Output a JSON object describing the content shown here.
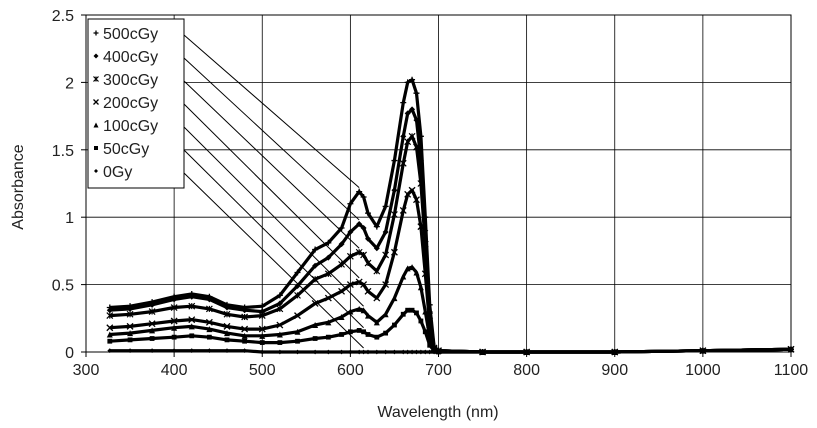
{
  "chart_data": {
    "type": "scatter",
    "title": "",
    "xlabel": "Wavelength (nm)",
    "ylabel": "Absorbance",
    "xlim": [
      300,
      1100
    ],
    "ylim": [
      0,
      2.5
    ],
    "xticks": [
      "300",
      "400",
      "500",
      "600",
      "700",
      "800",
      "900",
      "1000",
      "1100"
    ],
    "yticks": [
      "0",
      "0.5",
      "1",
      "1.5",
      "2",
      "2.5"
    ],
    "grid": true,
    "legend_position": "top-left",
    "series": [
      {
        "name": "500cGy",
        "marker": "plus",
        "x": [
          327,
          350,
          375,
          400,
          420,
          440,
          460,
          480,
          500,
          520,
          540,
          560,
          575,
          590,
          600,
          610,
          615,
          620,
          630,
          640,
          650,
          660,
          665,
          670,
          675,
          680,
          685,
          690,
          695,
          700,
          750,
          800,
          900,
          1000,
          1100
        ],
        "y": [
          0.33,
          0.34,
          0.37,
          0.41,
          0.43,
          0.41,
          0.35,
          0.33,
          0.34,
          0.42,
          0.59,
          0.76,
          0.81,
          0.92,
          1.1,
          1.19,
          1.15,
          1.03,
          0.93,
          1.08,
          1.42,
          1.85,
          2.0,
          2.02,
          1.92,
          1.6,
          1.0,
          0.35,
          0.04,
          0.01,
          0.0,
          0.0,
          0.0,
          0.01,
          0.02
        ]
      },
      {
        "name": "400cGy",
        "marker": "diamond",
        "x": [
          327,
          350,
          375,
          400,
          420,
          440,
          460,
          480,
          500,
          520,
          540,
          560,
          575,
          590,
          600,
          610,
          615,
          620,
          630,
          640,
          650,
          660,
          665,
          670,
          675,
          680,
          685,
          690,
          695,
          700,
          750,
          800,
          900,
          1000,
          1100
        ],
        "y": [
          0.31,
          0.32,
          0.35,
          0.39,
          0.41,
          0.39,
          0.33,
          0.31,
          0.3,
          0.36,
          0.49,
          0.64,
          0.7,
          0.8,
          0.89,
          0.95,
          0.92,
          0.84,
          0.77,
          0.89,
          1.2,
          1.6,
          1.77,
          1.8,
          1.72,
          1.42,
          0.9,
          0.3,
          0.03,
          0.01,
          0.0,
          0.0,
          0.0,
          0.01,
          0.02
        ]
      },
      {
        "name": "300cGy",
        "marker": "cross",
        "x": [
          327,
          350,
          375,
          400,
          420,
          440,
          460,
          480,
          500,
          520,
          540,
          560,
          575,
          590,
          600,
          610,
          615,
          620,
          630,
          640,
          650,
          660,
          665,
          670,
          675,
          680,
          685,
          690,
          695,
          700,
          750,
          800,
          900,
          1000,
          1100
        ],
        "y": [
          0.27,
          0.28,
          0.3,
          0.33,
          0.34,
          0.32,
          0.28,
          0.26,
          0.27,
          0.32,
          0.42,
          0.54,
          0.58,
          0.65,
          0.71,
          0.74,
          0.72,
          0.66,
          0.6,
          0.72,
          1.02,
          1.4,
          1.56,
          1.6,
          1.52,
          1.25,
          0.8,
          0.27,
          0.03,
          0.01,
          0.0,
          0.0,
          0.0,
          0.01,
          0.02
        ]
      },
      {
        "name": "200cGy",
        "marker": "x",
        "x": [
          327,
          350,
          375,
          400,
          420,
          440,
          460,
          480,
          500,
          520,
          540,
          560,
          575,
          590,
          600,
          610,
          615,
          620,
          630,
          640,
          650,
          660,
          665,
          670,
          675,
          680,
          685,
          690,
          695,
          700,
          750,
          800,
          900,
          1000,
          1100
        ],
        "y": [
          0.18,
          0.19,
          0.21,
          0.23,
          0.24,
          0.22,
          0.19,
          0.17,
          0.17,
          0.2,
          0.27,
          0.36,
          0.4,
          0.45,
          0.5,
          0.52,
          0.5,
          0.45,
          0.4,
          0.5,
          0.74,
          1.05,
          1.17,
          1.2,
          1.13,
          0.93,
          0.58,
          0.2,
          0.02,
          0.01,
          0.0,
          0.0,
          0.0,
          0.01,
          0.02
        ]
      },
      {
        "name": "100cGy",
        "marker": "triangle",
        "x": [
          327,
          350,
          375,
          400,
          420,
          440,
          460,
          480,
          500,
          520,
          540,
          560,
          575,
          590,
          600,
          610,
          615,
          620,
          630,
          640,
          650,
          660,
          665,
          670,
          675,
          680,
          685,
          690,
          695,
          700,
          750,
          800,
          900,
          1000,
          1100
        ],
        "y": [
          0.13,
          0.14,
          0.16,
          0.18,
          0.19,
          0.17,
          0.14,
          0.12,
          0.12,
          0.13,
          0.15,
          0.2,
          0.22,
          0.26,
          0.3,
          0.32,
          0.31,
          0.27,
          0.22,
          0.28,
          0.4,
          0.56,
          0.62,
          0.63,
          0.59,
          0.48,
          0.3,
          0.11,
          0.01,
          0.01,
          0.0,
          0.0,
          0.0,
          0.01,
          0.02
        ]
      },
      {
        "name": "50cGy",
        "marker": "square",
        "x": [
          327,
          350,
          375,
          400,
          420,
          440,
          460,
          480,
          500,
          520,
          540,
          560,
          575,
          590,
          600,
          610,
          615,
          620,
          630,
          640,
          650,
          660,
          665,
          670,
          675,
          680,
          685,
          690,
          695,
          700,
          750,
          800,
          900,
          1000,
          1100
        ],
        "y": [
          0.08,
          0.09,
          0.1,
          0.11,
          0.12,
          0.11,
          0.09,
          0.08,
          0.07,
          0.07,
          0.08,
          0.1,
          0.11,
          0.13,
          0.15,
          0.16,
          0.15,
          0.13,
          0.11,
          0.14,
          0.2,
          0.28,
          0.31,
          0.31,
          0.29,
          0.23,
          0.15,
          0.05,
          0.01,
          0.0,
          0.0,
          0.0,
          0.0,
          0.01,
          0.02
        ]
      },
      {
        "name": "0Gy",
        "marker": "diamond-small",
        "x": [
          327,
          350,
          375,
          400,
          420,
          440,
          460,
          480,
          500,
          520,
          540,
          560,
          575,
          590,
          600,
          610,
          615,
          620,
          630,
          640,
          650,
          660,
          665,
          670,
          675,
          680,
          685,
          690,
          695,
          700,
          750,
          800,
          900,
          1000,
          1100
        ],
        "y": [
          0.01,
          0.01,
          0.01,
          0.01,
          0.01,
          0.01,
          0.01,
          0.01,
          0.0,
          0.0,
          0.0,
          0.0,
          0.0,
          0.0,
          0.0,
          0.0,
          0.0,
          0.0,
          0.0,
          0.0,
          0.0,
          0.0,
          0.0,
          0.0,
          0.0,
          0.0,
          0.0,
          0.0,
          0.0,
          0.0,
          0.0,
          0.0,
          0.0,
          0.01,
          0.02
        ]
      }
    ],
    "annotations": [
      {
        "series": "500cGy",
        "x": 610,
        "y": 1.19
      },
      {
        "series": "400cGy",
        "x": 610,
        "y": 0.95
      },
      {
        "series": "300cGy",
        "x": 610,
        "y": 0.74
      },
      {
        "series": "200cGy",
        "x": 610,
        "y": 0.52
      },
      {
        "series": "100cGy",
        "x": 615,
        "y": 0.31
      },
      {
        "series": "50cGy",
        "x": 615,
        "y": 0.15
      },
      {
        "series": "0Gy",
        "x": 615,
        "y": 0.0
      }
    ]
  }
}
